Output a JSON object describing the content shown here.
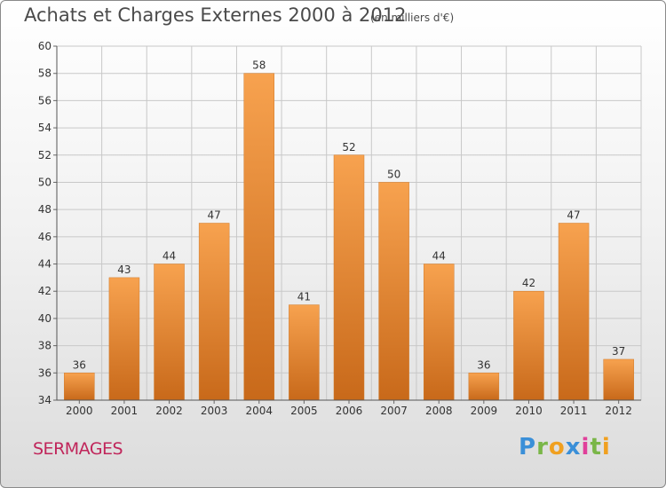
{
  "header": {
    "title": "Achats et Charges Externes 2000 à 2012",
    "subtitle": "(en milliers d'€)"
  },
  "footer": {
    "town": "SERMAGES",
    "logo_text": "Proxiti"
  },
  "colors": {
    "bar_light": "#f7a24f",
    "bar_dark": "#c8691a",
    "grid": "#c8c8c8",
    "axis_text": "#333333",
    "town": "#c0255a"
  },
  "chart_data": {
    "type": "bar",
    "title": "Achats et Charges Externes 2000 à 2012",
    "subtitle": "(en milliers d'€)",
    "categories": [
      "2000",
      "2001",
      "2002",
      "2003",
      "2004",
      "2005",
      "2006",
      "2007",
      "2008",
      "2009",
      "2010",
      "2011",
      "2012"
    ],
    "values": [
      36,
      43,
      44,
      47,
      58,
      41,
      52,
      50,
      44,
      36,
      42,
      47,
      37
    ],
    "ylim": [
      34,
      60
    ],
    "yticks": [
      34,
      36,
      38,
      40,
      42,
      44,
      46,
      48,
      50,
      52,
      54,
      56,
      58,
      60
    ],
    "grid": true,
    "data_labels": true
  }
}
